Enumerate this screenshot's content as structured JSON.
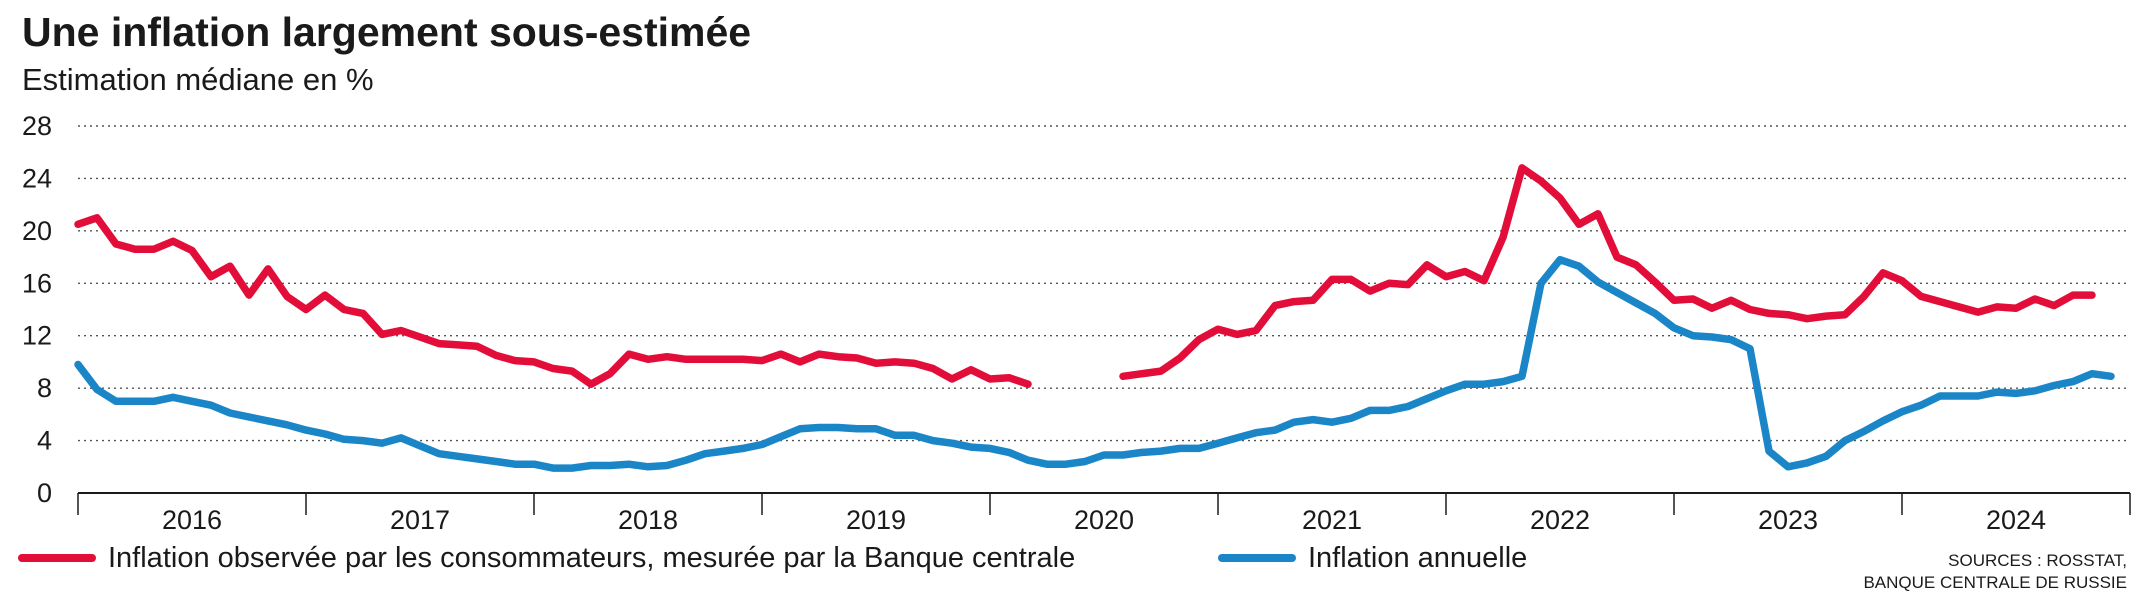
{
  "chart_data": {
    "type": "line",
    "title": "Une inflation largement sous-estimée",
    "subtitle": "Estimation médiane en %",
    "ylim": [
      0,
      28
    ],
    "yticks": [
      "0",
      "4",
      "8",
      "12",
      "16",
      "20",
      "24",
      "28"
    ],
    "ytick_values": [
      0,
      4,
      8,
      12,
      16,
      20,
      24,
      28
    ],
    "year_labels": [
      "2016",
      "2017",
      "2018",
      "2019",
      "2020",
      "2021",
      "2022",
      "2023",
      "2024"
    ],
    "x_start": "2016-01",
    "x_end": "2024-12",
    "grid": "horizontal dotted",
    "legend_position": "bottom",
    "series": [
      {
        "name": "Inflation observée par les consommateurs, mesurée par la Banque centrale",
        "color": "#e30d3a",
        "points": [
          [
            "2016-01",
            20.5
          ],
          [
            "2016-02",
            21.0
          ],
          [
            "2016-03",
            19.0
          ],
          [
            "2016-04",
            18.6
          ],
          [
            "2016-05",
            18.6
          ],
          [
            "2016-06",
            19.2
          ],
          [
            "2016-07",
            18.5
          ],
          [
            "2016-08",
            16.5
          ],
          [
            "2016-09",
            17.3
          ],
          [
            "2016-10",
            15.1
          ],
          [
            "2016-11",
            17.1
          ],
          [
            "2016-12",
            15.0
          ],
          [
            "2017-01",
            14.0
          ],
          [
            "2017-02",
            15.1
          ],
          [
            "2017-03",
            14.0
          ],
          [
            "2017-04",
            13.7
          ],
          [
            "2017-05",
            12.1
          ],
          [
            "2017-06",
            12.4
          ],
          [
            "2017-07",
            11.9
          ],
          [
            "2017-08",
            11.4
          ],
          [
            "2017-09",
            11.3
          ],
          [
            "2017-10",
            11.2
          ],
          [
            "2017-11",
            10.5
          ],
          [
            "2017-12",
            10.1
          ],
          [
            "2018-01",
            10.0
          ],
          [
            "2018-02",
            9.5
          ],
          [
            "2018-03",
            9.3
          ],
          [
            "2018-04",
            8.3
          ],
          [
            "2018-05",
            9.1
          ],
          [
            "2018-06",
            10.6
          ],
          [
            "2018-07",
            10.2
          ],
          [
            "2018-08",
            10.4
          ],
          [
            "2018-09",
            10.2
          ],
          [
            "2018-10",
            10.2
          ],
          [
            "2018-11",
            10.2
          ],
          [
            "2018-12",
            10.2
          ],
          [
            "2019-01",
            10.1
          ],
          [
            "2019-02",
            10.6
          ],
          [
            "2019-03",
            10.0
          ],
          [
            "2019-04",
            10.6
          ],
          [
            "2019-05",
            10.4
          ],
          [
            "2019-06",
            10.3
          ],
          [
            "2019-07",
            9.9
          ],
          [
            "2019-08",
            10.0
          ],
          [
            "2019-09",
            9.9
          ],
          [
            "2019-10",
            9.5
          ],
          [
            "2019-11",
            8.7
          ],
          [
            "2019-12",
            9.4
          ],
          [
            "2020-01",
            8.7
          ],
          [
            "2020-02",
            8.8
          ],
          [
            "2020-03",
            8.3
          ],
          [
            "2020-04",
            null
          ],
          [
            "2020-07",
            null
          ],
          [
            "2020-08",
            8.9
          ],
          [
            "2020-09",
            9.1
          ],
          [
            "2020-10",
            9.3
          ],
          [
            "2020-11",
            10.3
          ],
          [
            "2020-12",
            11.7
          ],
          [
            "2021-01",
            12.5
          ],
          [
            "2021-02",
            12.1
          ],
          [
            "2021-03",
            12.4
          ],
          [
            "2021-04",
            14.3
          ],
          [
            "2021-05",
            14.6
          ],
          [
            "2021-06",
            14.7
          ],
          [
            "2021-07",
            16.3
          ],
          [
            "2021-08",
            16.3
          ],
          [
            "2021-09",
            15.4
          ],
          [
            "2021-10",
            16.0
          ],
          [
            "2021-11",
            15.9
          ],
          [
            "2021-12",
            17.4
          ],
          [
            "2022-01",
            16.5
          ],
          [
            "2022-02",
            16.9
          ],
          [
            "2022-03",
            16.2
          ],
          [
            "2022-04",
            19.5
          ],
          [
            "2022-05",
            24.8
          ],
          [
            "2022-06",
            23.8
          ],
          [
            "2022-07",
            22.5
          ],
          [
            "2022-08",
            20.5
          ],
          [
            "2022-09",
            21.3
          ],
          [
            "2022-10",
            18.0
          ],
          [
            "2022-11",
            17.4
          ],
          [
            "2022-12",
            16.1
          ],
          [
            "2023-01",
            14.7
          ],
          [
            "2023-02",
            14.8
          ],
          [
            "2023-03",
            14.1
          ],
          [
            "2023-04",
            14.7
          ],
          [
            "2023-05",
            14.0
          ],
          [
            "2023-06",
            13.7
          ],
          [
            "2023-07",
            13.6
          ],
          [
            "2023-08",
            13.3
          ],
          [
            "2023-09",
            13.5
          ],
          [
            "2023-10",
            13.6
          ],
          [
            "2023-11",
            15.0
          ],
          [
            "2023-12",
            16.8
          ],
          [
            "2024-01",
            16.2
          ],
          [
            "2024-02",
            15.0
          ],
          [
            "2024-03",
            14.6
          ],
          [
            "2024-04",
            14.2
          ],
          [
            "2024-05",
            13.8
          ],
          [
            "2024-06",
            14.2
          ],
          [
            "2024-07",
            14.1
          ],
          [
            "2024-08",
            14.8
          ],
          [
            "2024-09",
            14.3
          ],
          [
            "2024-10",
            15.1
          ],
          [
            "2024-11",
            15.1
          ]
        ]
      },
      {
        "name": "Inflation annuelle",
        "color": "#1a86c8",
        "points": [
          [
            "2016-01",
            9.8
          ],
          [
            "2016-02",
            7.9
          ],
          [
            "2016-03",
            7.0
          ],
          [
            "2016-04",
            7.0
          ],
          [
            "2016-05",
            7.0
          ],
          [
            "2016-06",
            7.3
          ],
          [
            "2016-07",
            7.0
          ],
          [
            "2016-08",
            6.7
          ],
          [
            "2016-09",
            6.1
          ],
          [
            "2016-10",
            5.8
          ],
          [
            "2016-11",
            5.5
          ],
          [
            "2016-12",
            5.2
          ],
          [
            "2017-01",
            4.8
          ],
          [
            "2017-02",
            4.5
          ],
          [
            "2017-03",
            4.1
          ],
          [
            "2017-04",
            4.0
          ],
          [
            "2017-05",
            3.8
          ],
          [
            "2017-06",
            4.2
          ],
          [
            "2017-07",
            3.6
          ],
          [
            "2017-08",
            3.0
          ],
          [
            "2017-09",
            2.8
          ],
          [
            "2017-10",
            2.6
          ],
          [
            "2017-11",
            2.4
          ],
          [
            "2017-12",
            2.2
          ],
          [
            "2018-01",
            2.2
          ],
          [
            "2018-02",
            1.9
          ],
          [
            "2018-03",
            1.9
          ],
          [
            "2018-04",
            2.1
          ],
          [
            "2018-05",
            2.1
          ],
          [
            "2018-06",
            2.2
          ],
          [
            "2018-07",
            2.0
          ],
          [
            "2018-08",
            2.1
          ],
          [
            "2018-09",
            2.5
          ],
          [
            "2018-10",
            3.0
          ],
          [
            "2018-11",
            3.2
          ],
          [
            "2018-12",
            3.4
          ],
          [
            "2019-01",
            3.7
          ],
          [
            "2019-02",
            4.3
          ],
          [
            "2019-03",
            4.9
          ],
          [
            "2019-04",
            5.0
          ],
          [
            "2019-05",
            5.0
          ],
          [
            "2019-06",
            4.9
          ],
          [
            "2019-07",
            4.9
          ],
          [
            "2019-08",
            4.4
          ],
          [
            "2019-09",
            4.4
          ],
          [
            "2019-10",
            4.0
          ],
          [
            "2019-11",
            3.8
          ],
          [
            "2019-12",
            3.5
          ],
          [
            "2020-01",
            3.4
          ],
          [
            "2020-02",
            3.1
          ],
          [
            "2020-03",
            2.5
          ],
          [
            "2020-04",
            2.2
          ],
          [
            "2020-05",
            2.2
          ],
          [
            "2020-06",
            2.4
          ],
          [
            "2020-07",
            2.9
          ],
          [
            "2020-08",
            2.9
          ],
          [
            "2020-09",
            3.1
          ],
          [
            "2020-10",
            3.2
          ],
          [
            "2020-11",
            3.4
          ],
          [
            "2020-12",
            3.4
          ],
          [
            "2021-01",
            3.8
          ],
          [
            "2021-02",
            4.2
          ],
          [
            "2021-03",
            4.6
          ],
          [
            "2021-04",
            4.8
          ],
          [
            "2021-05",
            5.4
          ],
          [
            "2021-06",
            5.6
          ],
          [
            "2021-07",
            5.4
          ],
          [
            "2021-08",
            5.7
          ],
          [
            "2021-09",
            6.3
          ],
          [
            "2021-10",
            6.3
          ],
          [
            "2021-11",
            6.6
          ],
          [
            "2021-12",
            7.2
          ],
          [
            "2022-01",
            7.8
          ],
          [
            "2022-02",
            8.3
          ],
          [
            "2022-03",
            8.3
          ],
          [
            "2022-04",
            8.5
          ],
          [
            "2022-05",
            8.9
          ],
          [
            "2022-06",
            16.0
          ],
          [
            "2022-07",
            17.8
          ],
          [
            "2022-08",
            17.3
          ],
          [
            "2022-09",
            16.1
          ],
          [
            "2022-10",
            15.3
          ],
          [
            "2022-11",
            14.5
          ],
          [
            "2022-12",
            13.7
          ],
          [
            "2023-01",
            12.6
          ],
          [
            "2023-02",
            12.0
          ],
          [
            "2023-03",
            11.9
          ],
          [
            "2023-04",
            11.7
          ],
          [
            "2023-05",
            11.0
          ],
          [
            "2023-06",
            3.2
          ],
          [
            "2023-07",
            2.0
          ],
          [
            "2023-08",
            2.3
          ],
          [
            "2023-09",
            2.8
          ],
          [
            "2023-10",
            4.0
          ],
          [
            "2023-11",
            4.7
          ],
          [
            "2023-12",
            5.5
          ],
          [
            "2024-01",
            6.2
          ],
          [
            "2024-02",
            6.7
          ],
          [
            "2024-03",
            7.4
          ],
          [
            "2024-04",
            7.4
          ],
          [
            "2024-05",
            7.4
          ],
          [
            "2024-06",
            7.7
          ],
          [
            "2024-07",
            7.6
          ],
          [
            "2024-08",
            7.8
          ],
          [
            "2024-09",
            8.2
          ],
          [
            "2024-10",
            8.5
          ],
          [
            "2024-11",
            9.1
          ],
          [
            "2024-12",
            8.9
          ]
        ]
      }
    ]
  },
  "source_lines": [
    "SOURCES : ROSSTAT,",
    "BANQUE CENTRALE DE RUSSIE"
  ]
}
